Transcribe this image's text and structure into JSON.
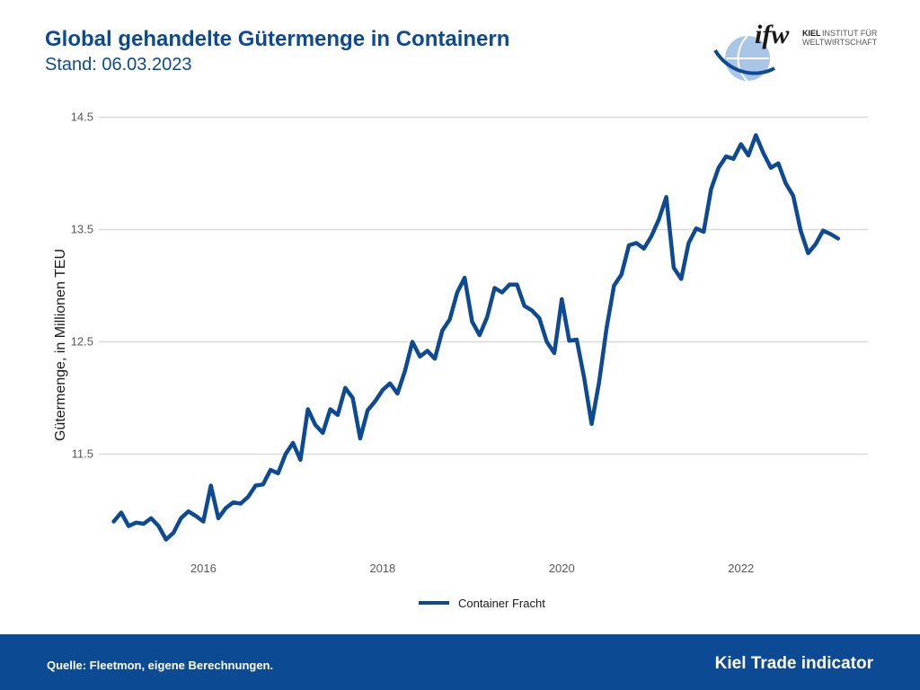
{
  "header": {
    "title": "Global gehandelte Gütermenge in Containern",
    "subtitle": "Stand: 06.03.2023"
  },
  "logo": {
    "mark": "ifw",
    "line1_bold": "KIEL",
    "line1_rest": "INSTITUT FÜR",
    "line2": "WELTWIRTSCHAFT"
  },
  "footer": {
    "source": "Quelle: Fleetmon, eigene Berechnungen.",
    "brand": "Kiel Trade indicator"
  },
  "colors": {
    "brand": "#0c4a94",
    "series": "#0c4a94",
    "grid": "#d9d9d9",
    "axis_text": "#595959"
  },
  "chart_data": {
    "type": "line",
    "title": "",
    "xlabel": "",
    "ylabel": "Gütermenge, in Millionen TEU",
    "x_ticks": [
      "2016",
      "2018",
      "2020",
      "2022"
    ],
    "y_ticks": [
      "11.5",
      "12.5",
      "13.5",
      "14.5"
    ],
    "ylim": [
      10.6,
      14.6
    ],
    "xlim": [
      "2014-11",
      "2023-06"
    ],
    "grid": true,
    "legend_position": "bottom",
    "series": [
      {
        "name": "Container Fracht",
        "color": "#0c4a94",
        "points": [
          [
            "2015-01",
            10.9
          ],
          [
            "2015-02",
            10.98
          ],
          [
            "2015-03",
            10.86
          ],
          [
            "2015-04",
            10.89
          ],
          [
            "2015-05",
            10.88
          ],
          [
            "2015-06",
            10.93
          ],
          [
            "2015-07",
            10.86
          ],
          [
            "2015-08",
            10.74
          ],
          [
            "2015-09",
            10.8
          ],
          [
            "2015-10",
            10.93
          ],
          [
            "2015-11",
            10.99
          ],
          [
            "2015-12",
            10.95
          ],
          [
            "2016-01",
            10.9
          ],
          [
            "2016-02",
            11.22
          ],
          [
            "2016-03",
            10.93
          ],
          [
            "2016-04",
            11.02
          ],
          [
            "2016-05",
            11.07
          ],
          [
            "2016-06",
            11.06
          ],
          [
            "2016-07",
            11.12
          ],
          [
            "2016-08",
            11.22
          ],
          [
            "2016-09",
            11.23
          ],
          [
            "2016-10",
            11.36
          ],
          [
            "2016-11",
            11.33
          ],
          [
            "2016-12",
            11.5
          ],
          [
            "2017-01",
            11.6
          ],
          [
            "2017-02",
            11.45
          ],
          [
            "2017-03",
            11.9
          ],
          [
            "2017-04",
            11.76
          ],
          [
            "2017-05",
            11.69
          ],
          [
            "2017-06",
            11.9
          ],
          [
            "2017-07",
            11.85
          ],
          [
            "2017-08",
            12.09
          ],
          [
            "2017-09",
            12.0
          ],
          [
            "2017-10",
            11.64
          ],
          [
            "2017-11",
            11.89
          ],
          [
            "2017-12",
            11.97
          ],
          [
            "2018-01",
            12.07
          ],
          [
            "2018-02",
            12.13
          ],
          [
            "2018-03",
            12.04
          ],
          [
            "2018-04",
            12.24
          ],
          [
            "2018-05",
            12.5
          ],
          [
            "2018-06",
            12.37
          ],
          [
            "2018-07",
            12.42
          ],
          [
            "2018-08",
            12.35
          ],
          [
            "2018-09",
            12.6
          ],
          [
            "2018-10",
            12.7
          ],
          [
            "2018-11",
            12.94
          ],
          [
            "2018-12",
            13.07
          ],
          [
            "2019-01",
            12.68
          ],
          [
            "2019-02",
            12.56
          ],
          [
            "2019-03",
            12.72
          ],
          [
            "2019-04",
            12.98
          ],
          [
            "2019-05",
            12.94
          ],
          [
            "2019-06",
            13.01
          ],
          [
            "2019-07",
            13.01
          ],
          [
            "2019-08",
            12.82
          ],
          [
            "2019-09",
            12.78
          ],
          [
            "2019-10",
            12.71
          ],
          [
            "2019-11",
            12.5
          ],
          [
            "2019-12",
            12.4
          ],
          [
            "2020-01",
            12.88
          ],
          [
            "2020-02",
            12.51
          ],
          [
            "2020-03",
            12.52
          ],
          [
            "2020-04",
            12.18
          ],
          [
            "2020-05",
            11.77
          ],
          [
            "2020-06",
            12.14
          ],
          [
            "2020-07",
            12.62
          ],
          [
            "2020-08",
            13.0
          ],
          [
            "2020-09",
            13.1
          ],
          [
            "2020-10",
            13.36
          ],
          [
            "2020-11",
            13.38
          ],
          [
            "2020-12",
            13.33
          ],
          [
            "2021-01",
            13.44
          ],
          [
            "2021-02",
            13.59
          ],
          [
            "2021-03",
            13.79
          ],
          [
            "2021-04",
            13.16
          ],
          [
            "2021-05",
            13.06
          ],
          [
            "2021-06",
            13.38
          ],
          [
            "2021-07",
            13.51
          ],
          [
            "2021-08",
            13.48
          ],
          [
            "2021-09",
            13.86
          ],
          [
            "2021-10",
            14.05
          ],
          [
            "2021-11",
            14.15
          ],
          [
            "2021-12",
            14.13
          ],
          [
            "2022-01",
            14.26
          ],
          [
            "2022-02",
            14.16
          ],
          [
            "2022-03",
            14.34
          ],
          [
            "2022-04",
            14.18
          ],
          [
            "2022-05",
            14.05
          ],
          [
            "2022-06",
            14.09
          ],
          [
            "2022-07",
            13.91
          ],
          [
            "2022-08",
            13.8
          ],
          [
            "2022-09",
            13.49
          ],
          [
            "2022-10",
            13.29
          ],
          [
            "2022-11",
            13.37
          ],
          [
            "2022-12",
            13.49
          ],
          [
            "2023-01",
            13.46
          ],
          [
            "2023-02",
            13.42
          ]
        ]
      }
    ]
  }
}
